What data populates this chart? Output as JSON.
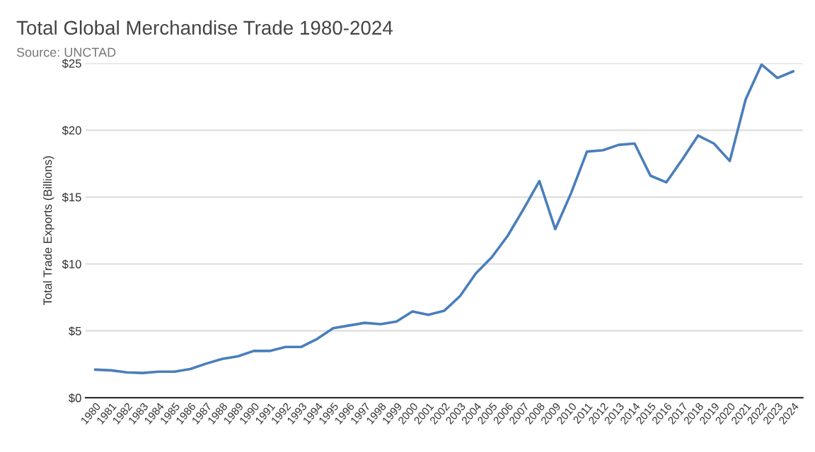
{
  "chart_data": {
    "type": "line",
    "title": "Total Global Merchandise Trade 1980-2024",
    "subtitle": "Source: UNCTAD",
    "ylabel": "Total Trade Exports (Billions)",
    "categories": [
      "1980",
      "1981",
      "1982",
      "1983",
      "1984",
      "1985",
      "1986",
      "1987",
      "1988",
      "1989",
      "1990",
      "1991",
      "1992",
      "1993",
      "1994",
      "1995",
      "1996",
      "1997",
      "1998",
      "1999",
      "2000",
      "2001",
      "2002",
      "2003",
      "2004",
      "2005",
      "2006",
      "2007",
      "2008",
      "2009",
      "2010",
      "2011",
      "2012",
      "2013",
      "2014",
      "2015",
      "2016",
      "2017",
      "2018",
      "2019",
      "2020",
      "2021",
      "2022",
      "2023",
      "2024"
    ],
    "series": [
      {
        "color": "#4a7ebb",
        "values": [
          2.1,
          2.05,
          1.9,
          1.85,
          1.95,
          1.95,
          2.15,
          2.55,
          2.9,
          3.1,
          3.5,
          3.5,
          3.8,
          3.8,
          4.4,
          5.2,
          5.4,
          5.6,
          5.5,
          5.7,
          6.45,
          6.2,
          6.5,
          7.6,
          9.3,
          10.5,
          12.1,
          14.1,
          16.2,
          12.6,
          15.3,
          18.4,
          18.5,
          18.9,
          19.0,
          16.6,
          16.1,
          17.8,
          19.6,
          19.0,
          17.7,
          22.3,
          24.9,
          23.9,
          24.4
        ]
      }
    ],
    "ylim": [
      0,
      25
    ],
    "yticks": [
      {
        "value": 0,
        "label": "$0"
      },
      {
        "value": 5,
        "label": "$5"
      },
      {
        "value": 10,
        "label": "$10"
      },
      {
        "value": 15,
        "label": "$15"
      },
      {
        "value": 20,
        "label": "$20"
      },
      {
        "value": 25,
        "label": "$25"
      }
    ],
    "grid": "y",
    "legend": false,
    "marker": "none",
    "line_style": "solid"
  }
}
